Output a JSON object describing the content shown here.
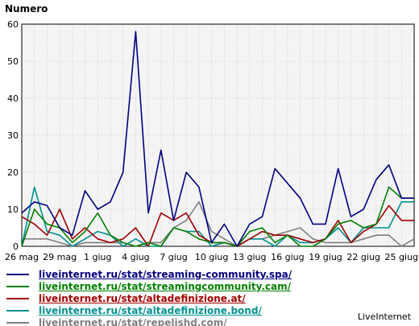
{
  "chart_data": {
    "type": "line",
    "title": "Numero",
    "xlabel": "",
    "ylabel": "Numero",
    "ylim": [
      0,
      60
    ],
    "yticks": [
      0,
      10,
      20,
      30,
      40,
      50,
      60
    ],
    "grid": true,
    "legend_position": "bottom",
    "x_tick_labels": [
      "26 mag",
      "29 mag",
      "1 giug",
      "4 giug",
      "7 giug",
      "10 giug",
      "13 giug",
      "16 giug",
      "19 giug",
      "22 giug",
      "25 giug"
    ],
    "x_tick_every": 3,
    "x": [
      "26 mag",
      "27 mag",
      "28 mag",
      "29 mag",
      "30 mag",
      "31 mag",
      "1 giug",
      "2 giug",
      "3 giug",
      "4 giug",
      "5 giug",
      "6 giug",
      "7 giug",
      "8 giug",
      "9 giug",
      "10 giug",
      "11 giug",
      "12 giug",
      "13 giug",
      "14 giug",
      "15 giug",
      "16 giug",
      "17 giug",
      "18 giug",
      "19 giug",
      "20 giug",
      "21 giug",
      "22 giug",
      "23 giug",
      "24 giug",
      "25 giug",
      "26 giug"
    ],
    "series": [
      {
        "name": "liveinternet.ru/stat/streaming-community.spa/",
        "color": "#000080",
        "values": [
          9,
          12,
          11,
          5,
          3,
          15,
          10,
          12,
          20,
          58,
          9,
          26,
          7,
          20,
          16,
          1,
          6,
          0,
          6,
          8,
          21,
          17,
          13,
          6,
          6,
          21,
          8,
          10,
          18,
          22,
          13,
          13
        ]
      },
      {
        "name": "liveinternet.ru/stat/streamingcommunity.cam/",
        "color": "#008000",
        "values": [
          0,
          10,
          6,
          5,
          1,
          4,
          9,
          3,
          1,
          0,
          1,
          0,
          5,
          4,
          2,
          1,
          1,
          0,
          4,
          5,
          1,
          3,
          0,
          0,
          2,
          6,
          7,
          5,
          6,
          16,
          13,
          13
        ]
      },
      {
        "name": "liveinternet.ru/stat/altadefinizione.at/",
        "color": "#a00000",
        "values": [
          8,
          6,
          3,
          10,
          2,
          5,
          2,
          1,
          2,
          5,
          0,
          9,
          7,
          9,
          3,
          1,
          1,
          0,
          2,
          4,
          3,
          3,
          2,
          1,
          2,
          7,
          1,
          4,
          6,
          11,
          7,
          7
        ]
      },
      {
        "name": "liveinternet.ru/stat/altadefinizione.bond/",
        "color": "#009090",
        "values": [
          0,
          16,
          4,
          3,
          0,
          2,
          4,
          3,
          0,
          2,
          0,
          0,
          5,
          4,
          4,
          0,
          1,
          0,
          2,
          2,
          0,
          3,
          1,
          1,
          2,
          5,
          1,
          5,
          5,
          5,
          12,
          12
        ]
      },
      {
        "name": "liveinternet.ru/stat/repelishd.com/",
        "color": "#808080",
        "values": [
          2,
          2,
          2,
          1,
          0,
          1,
          1,
          1,
          1,
          0,
          1,
          1,
          5,
          7,
          12,
          4,
          2,
          0,
          2,
          2,
          3,
          4,
          5,
          2,
          1,
          1,
          1,
          2,
          3,
          3,
          0,
          2
        ]
      }
    ]
  },
  "brand_label": "LiveInternet"
}
